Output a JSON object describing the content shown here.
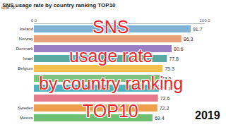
{
  "chart_data": {
    "type": "bar",
    "title": "SNS usage rate by country ranking TOP10",
    "subtitle": "unit:%",
    "orientation": "horizontal",
    "categories": [
      "Iceland",
      "Norway",
      "Denmark",
      "Israel",
      "Belgium",
      null,
      null,
      null,
      "Sweden",
      "Mexico"
    ],
    "values": [
      91.7,
      86.3,
      80.6,
      77.8,
      75.3,
      73.5,
      73.1,
      72.6,
      72.2,
      69.4
    ],
    "colors": [
      "#7fb3d5",
      "#e8a07a",
      "#9b7fc4",
      "#5aa9a0",
      "#f2c14e",
      "#7cc47f",
      "#4fb3bf",
      "#e57a8c",
      "#f0a04b",
      "#6fbf73"
    ],
    "data_labels": true,
    "xlim": [
      0,
      100
    ],
    "xticks": [
      {
        "value": 0,
        "label": "0.0"
      },
      {
        "value": 100,
        "label": "100.0"
      }
    ],
    "grid": true,
    "annotations": [
      "SNS",
      "usage rate",
      "by country ranking",
      "TOP10",
      "2019"
    ]
  }
}
